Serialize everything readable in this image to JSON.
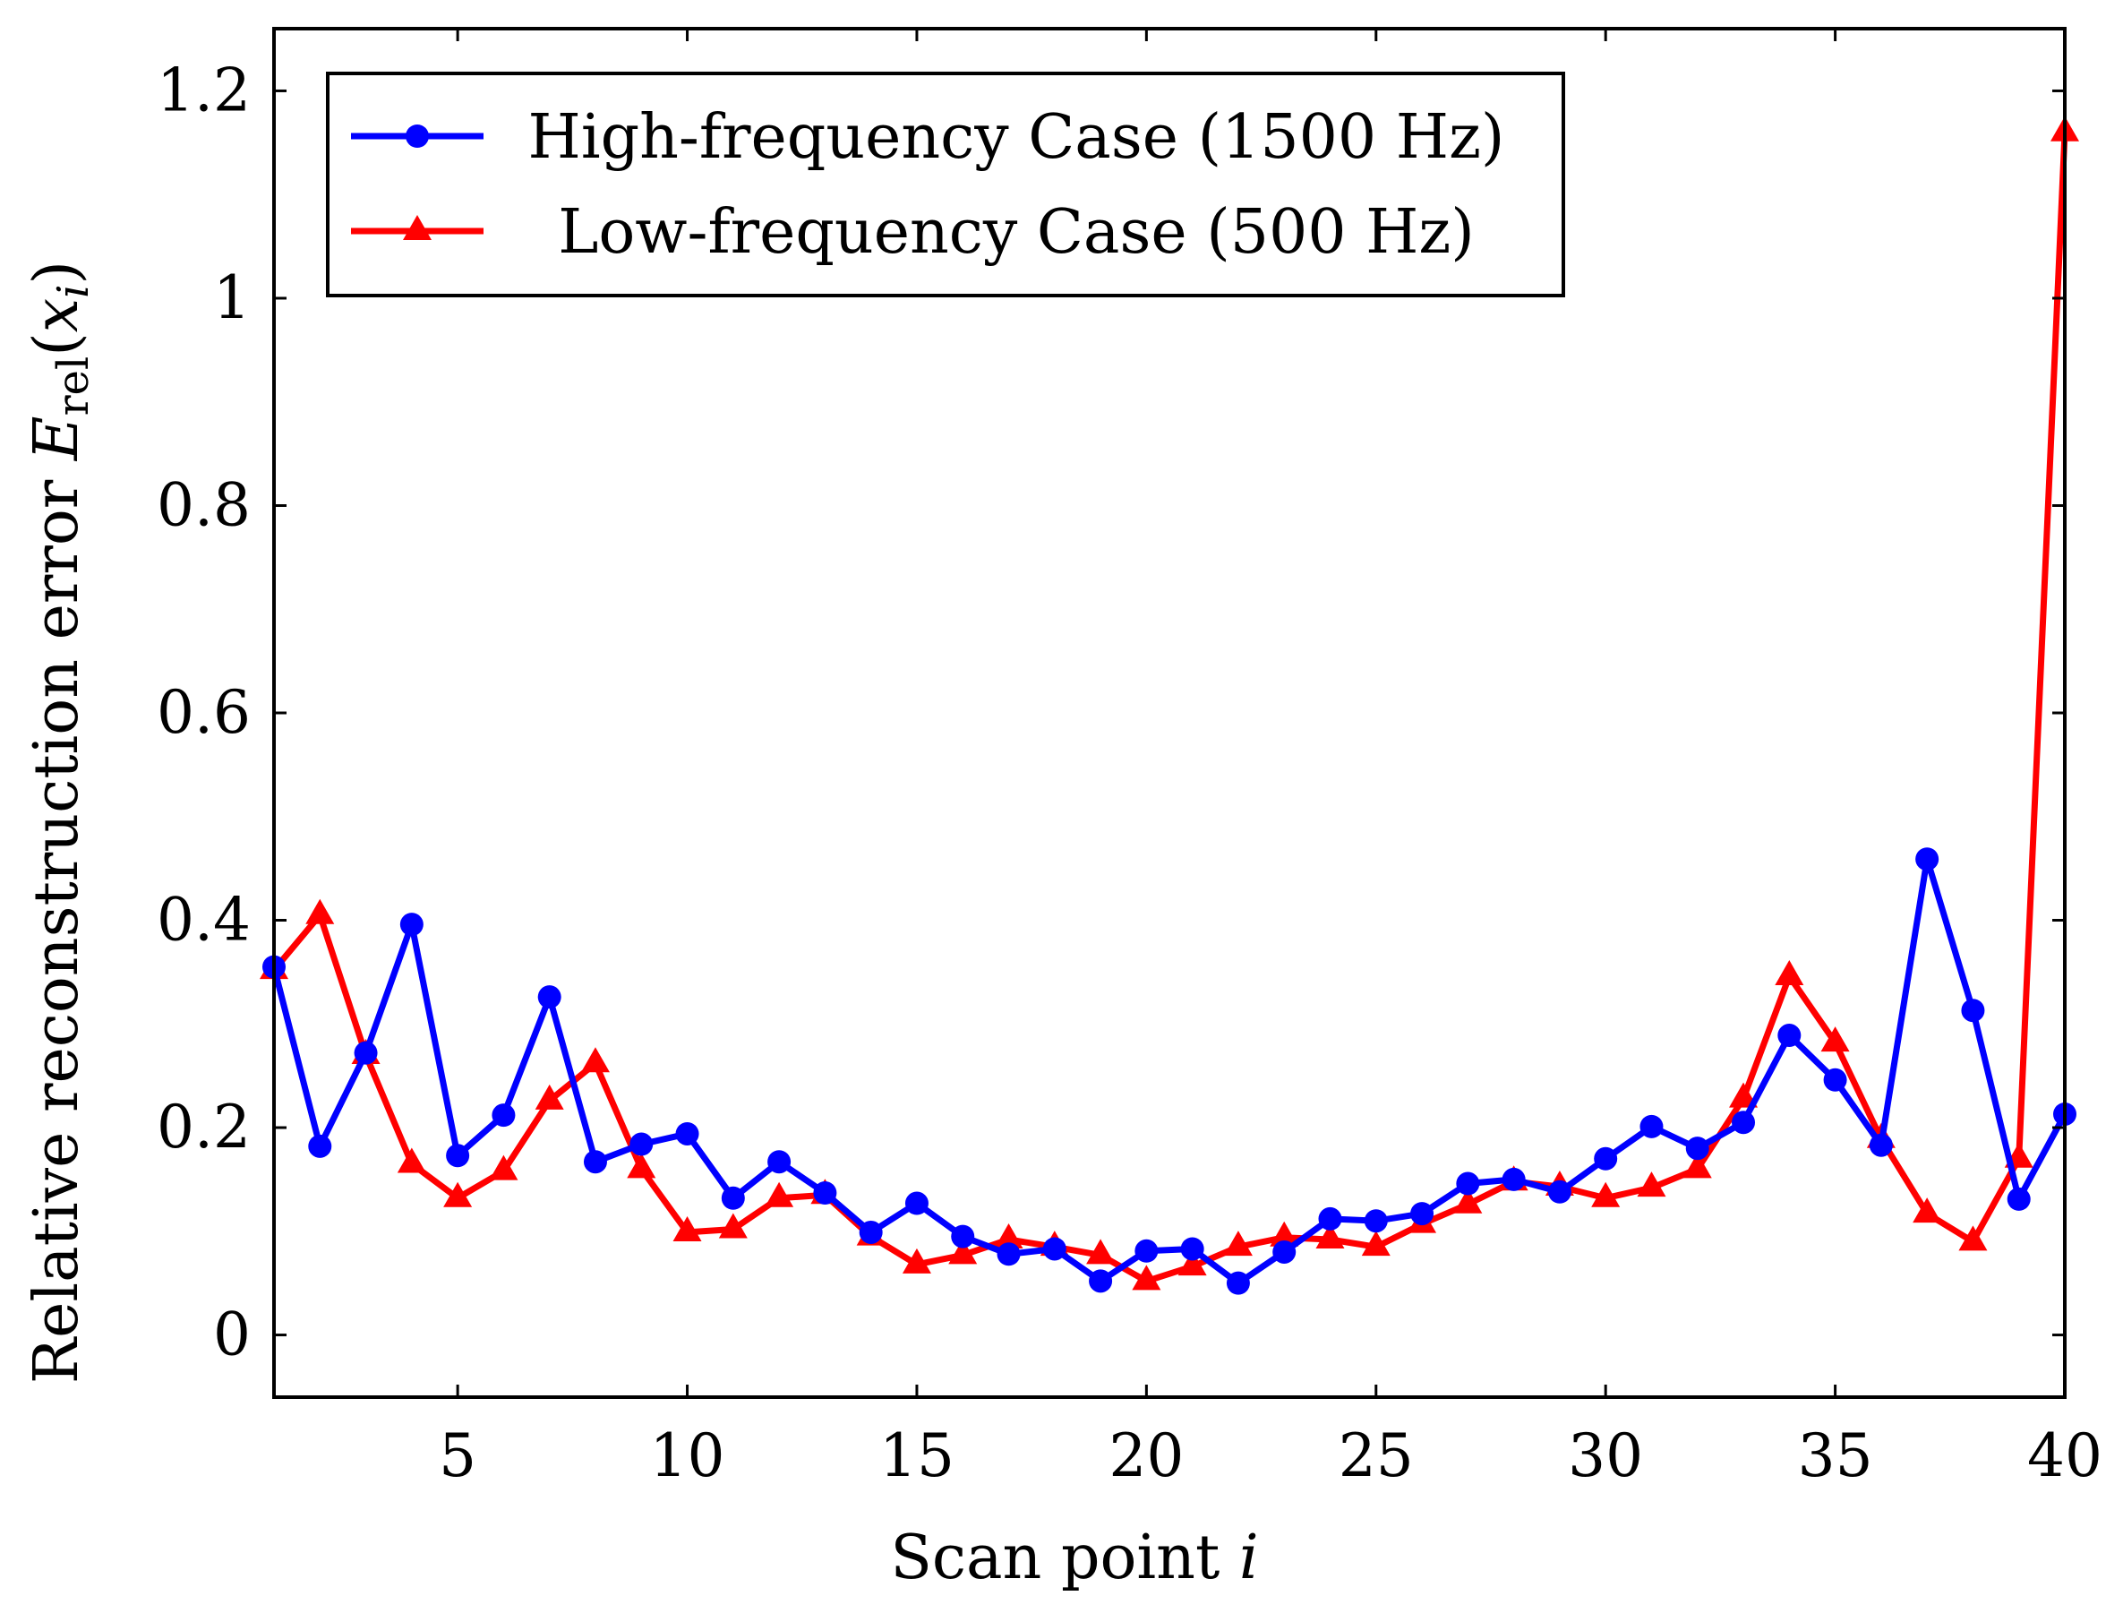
{
  "chart_data": {
    "type": "line",
    "xlabel": "Scan point i",
    "ylabel": "Relative reconstruction error E_rel(x_i)",
    "xlim": [
      1,
      40
    ],
    "ylim": [
      -0.06,
      1.26
    ],
    "xticks": [
      5,
      10,
      15,
      20,
      25,
      30,
      35,
      40
    ],
    "yticks": [
      0,
      0.2,
      0.4,
      0.6,
      0.8,
      1,
      1.2
    ],
    "ytick_labels": [
      "0",
      "0.2",
      "0.4",
      "0.6",
      "0.8",
      "1",
      "1.2"
    ],
    "legend_position": "top-left",
    "x": [
      1,
      2,
      3,
      4,
      5,
      6,
      7,
      8,
      9,
      10,
      11,
      12,
      13,
      14,
      15,
      16,
      17,
      18,
      19,
      20,
      21,
      22,
      23,
      24,
      25,
      26,
      27,
      28,
      29,
      30,
      31,
      32,
      33,
      34,
      35,
      36,
      37,
      38,
      39,
      40
    ],
    "series": [
      {
        "name": "High-frequency Case (1500 Hz)",
        "color": "#0000ff",
        "marker": "circle",
        "values": [
          0.355,
          0.182,
          0.272,
          0.396,
          0.173,
          0.212,
          0.326,
          0.167,
          0.184,
          0.194,
          0.132,
          0.167,
          0.137,
          0.099,
          0.127,
          0.095,
          0.078,
          0.083,
          0.052,
          0.081,
          0.083,
          0.05,
          0.08,
          0.112,
          0.11,
          0.117,
          0.146,
          0.15,
          0.138,
          0.17,
          0.201,
          0.18,
          0.205,
          0.289,
          0.246,
          0.183,
          0.459,
          0.313,
          0.131,
          0.213
        ]
      },
      {
        "name": "Low-frequency Case (500 Hz)",
        "color": "#ff0000",
        "marker": "triangle",
        "values": [
          0.352,
          0.405,
          0.27,
          0.165,
          0.132,
          0.158,
          0.226,
          0.262,
          0.16,
          0.099,
          0.102,
          0.132,
          0.135,
          0.095,
          0.068,
          0.077,
          0.092,
          0.085,
          0.077,
          0.052,
          0.066,
          0.085,
          0.094,
          0.092,
          0.085,
          0.107,
          0.126,
          0.148,
          0.143,
          0.132,
          0.142,
          0.16,
          0.228,
          0.346,
          0.282,
          0.189,
          0.117,
          0.09,
          0.17,
          1.16
        ]
      }
    ]
  },
  "axis_titles": {
    "x_main": "Scan point ",
    "x_var": "i",
    "y_main": "Relative reconstruction error ",
    "y_var_E": "E",
    "y_sub": "rel",
    "y_open": "(",
    "y_var_x": "x",
    "y_var_i": "i",
    "y_close": ")"
  }
}
